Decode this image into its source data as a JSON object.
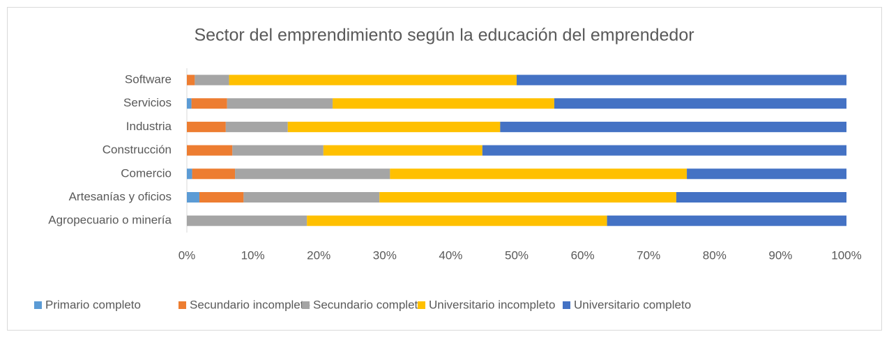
{
  "chart_data": {
    "type": "stacked-bar-horizontal",
    "title": "Sector del emprendimiento según la educación del emprendedor",
    "categories": [
      "Agropecuario o minería",
      "Artesanías y oficios",
      "Comercio",
      "Construcción",
      "Industria",
      "Servicios",
      "Software"
    ],
    "series": [
      {
        "name": "Primario completo",
        "color": "#5b9bd5",
        "values": [
          0,
          1.9,
          0.8,
          0,
          0,
          0.7,
          0
        ]
      },
      {
        "name": "Secundario incompleto",
        "color": "#ed7d31",
        "values": [
          0,
          6.7,
          6.5,
          6.9,
          5.9,
          5.4,
          1.2
        ]
      },
      {
        "name": "Secundario completo",
        "color": "#a5a5a5",
        "values": [
          18.2,
          20.6,
          23.5,
          13.8,
          9.4,
          16,
          5.2
        ]
      },
      {
        "name": "Universitario incompleto",
        "color": "#ffc000",
        "values": [
          45.5,
          45,
          45,
          24.1,
          32.2,
          33.6,
          43.6
        ]
      },
      {
        "name": "Universitario completo",
        "color": "#4472c4",
        "values": [
          36.3,
          25.8,
          24.2,
          55.2,
          52.5,
          44.3,
          50
        ]
      }
    ],
    "xlim": [
      0,
      100
    ],
    "xticks": [
      {
        "value": 0,
        "label": "0%"
      },
      {
        "value": 10,
        "label": "10%"
      },
      {
        "value": 20,
        "label": "20%"
      },
      {
        "value": 30,
        "label": "30%"
      },
      {
        "value": 40,
        "label": "40%"
      },
      {
        "value": 50,
        "label": "50%"
      },
      {
        "value": 60,
        "label": "60%"
      },
      {
        "value": 70,
        "label": "70%"
      },
      {
        "value": 80,
        "label": "80%"
      },
      {
        "value": 90,
        "label": "90%"
      },
      {
        "value": 100,
        "label": "100%"
      }
    ],
    "legend": "bottom"
  }
}
